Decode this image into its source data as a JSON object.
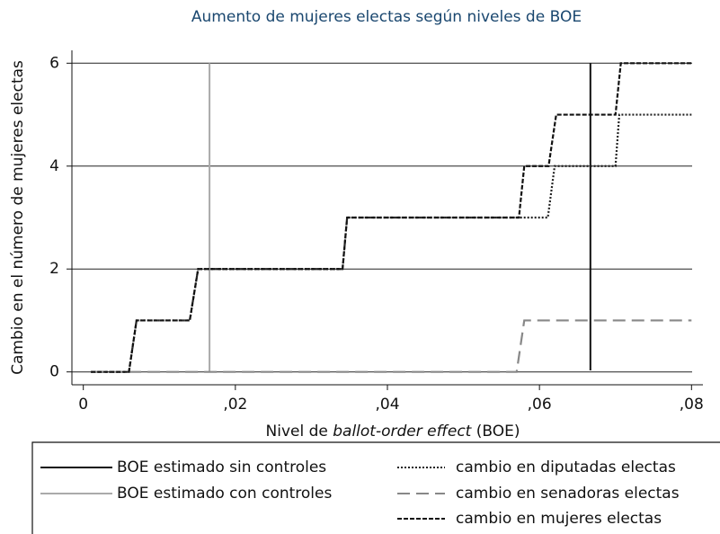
{
  "chart_data": {
    "type": "line",
    "title": "Aumento de mujeres electas según niveles de BOE",
    "xlabel_parts": [
      "Nivel de ",
      "ballot-order effect",
      " (BOE)"
    ],
    "ylabel": "Cambio en el número de mujeres electas",
    "xlim": [
      -0.0015,
      0.0815
    ],
    "ylim": [
      -0.25,
      6.25
    ],
    "xticks": [
      0,
      {
        "value": 0.02,
        "label": ",02"
      },
      {
        "value": 0.04,
        "label": ",04"
      },
      {
        "value": 0.06,
        "label": ",06"
      },
      {
        "value": 0.08,
        "label": ",08"
      }
    ],
    "yticks": [
      0,
      2,
      4,
      6
    ],
    "grid": true,
    "legend": "bottom",
    "series": [
      {
        "name": "BOE estimado sin controles",
        "color": "#111111",
        "dash": "solid",
        "x": [
          0.0667,
          0.0667
        ],
        "values": [
          0.03,
          6
        ]
      },
      {
        "name": "BOE estimado con controles",
        "color": "#aaaaaa",
        "dash": "solid",
        "x": [
          0.0166,
          0.0166
        ],
        "values": [
          0,
          6
        ]
      },
      {
        "name": "cambio en diputadas electas",
        "color": "#222222",
        "dash": "dotted",
        "x": [
          0.001,
          0.006,
          0.007,
          0.014,
          0.0151,
          0.0341,
          0.0347,
          0.0611,
          0.062,
          0.07,
          0.0705,
          0.08
        ],
        "values": [
          0,
          0,
          1,
          1,
          2,
          2,
          3,
          3,
          4,
          4,
          5,
          5
        ]
      },
      {
        "name": "cambio en senadoras electas",
        "color": "#888888",
        "dash": "dashed",
        "x": [
          0.001,
          0.057,
          0.058,
          0.08
        ],
        "values": [
          0,
          0,
          1,
          1
        ]
      },
      {
        "name": "cambio en mujeres electas",
        "color": "#111111",
        "dash": "shortdash",
        "x": [
          0.001,
          0.006,
          0.007,
          0.014,
          0.0151,
          0.0341,
          0.0347,
          0.0573,
          0.058,
          0.0612,
          0.0622,
          0.07,
          0.0707,
          0.08
        ],
        "values": [
          0,
          0,
          1,
          1,
          2,
          2,
          3,
          3,
          4,
          4,
          5,
          5,
          6,
          6
        ]
      }
    ]
  }
}
